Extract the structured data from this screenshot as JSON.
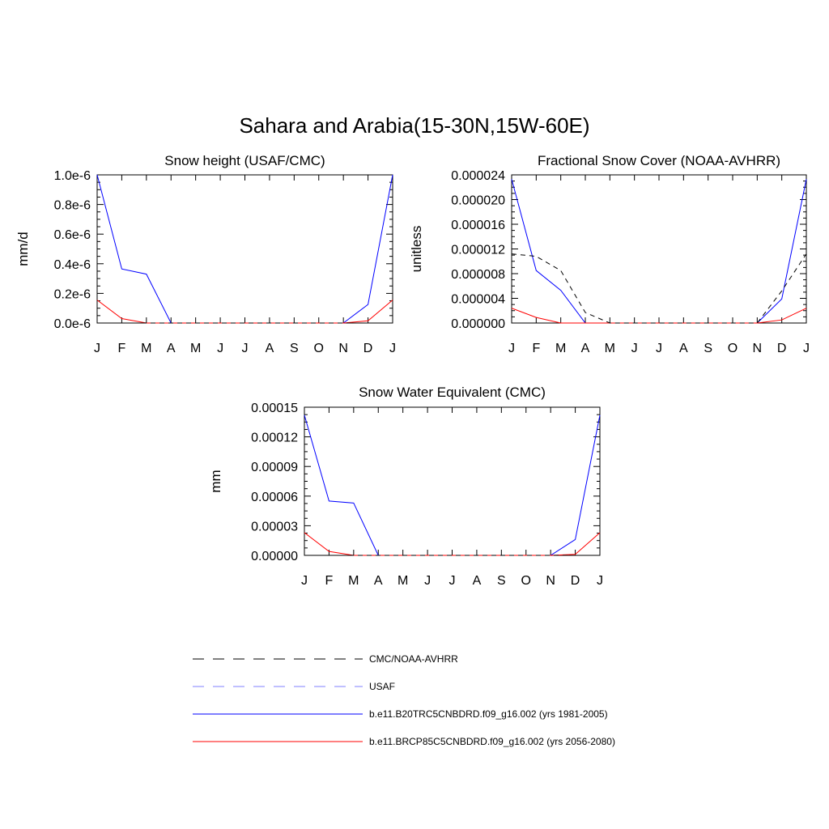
{
  "figure": {
    "title": "Sahara and Arabia(15-30N,15W-60E)"
  },
  "chart_data": [
    {
      "type": "line",
      "title": "Snow height (USAF/CMC)",
      "xlabel": "",
      "ylabel": "mm/d",
      "categories": [
        "J",
        "F",
        "M",
        "A",
        "M",
        "J",
        "J",
        "A",
        "S",
        "O",
        "N",
        "D",
        "J"
      ],
      "ylim": [
        0,
        1e-06
      ],
      "yticks": [
        0,
        2e-07,
        4e-07,
        6e-07,
        8e-07,
        1e-06
      ],
      "ytick_labels": [
        "0.0e-6",
        "0.2e-6",
        "0.4e-6",
        "0.6e-6",
        "0.8e-6",
        "1.0e-6"
      ],
      "series": [
        {
          "name": "b.e11.B20TRC5CNBDRD.f09_g16.002 (yrs 1981-2005)",
          "color": "#0000ff",
          "dash": "solid",
          "values": [
            1e-06,
            3.65e-07,
            3.3e-07,
            0,
            0,
            0,
            0,
            0,
            0,
            0,
            0,
            1.25e-07,
            1e-06
          ]
        },
        {
          "name": "b.e11.BRCP85C5CNBDRD.f09_g16.002 (yrs 2056-2080)",
          "color": "#ff0000",
          "dash": "solid",
          "values": [
            1.55e-07,
            3e-08,
            0,
            0,
            0,
            0,
            0,
            0,
            0,
            0,
            0,
            1.5e-08,
            1.55e-07
          ]
        },
        {
          "name": "CMC/NOAA-AVHRR",
          "color": "#000000",
          "dash": "dashed",
          "values": [
            0,
            0,
            0,
            0,
            0,
            0,
            0,
            0,
            0,
            0,
            0,
            0,
            0
          ]
        }
      ]
    },
    {
      "type": "line",
      "title": "Fractional Snow Cover (NOAA-AVHRR)",
      "xlabel": "",
      "ylabel": "unitless",
      "categories": [
        "J",
        "F",
        "M",
        "A",
        "M",
        "J",
        "J",
        "A",
        "S",
        "O",
        "N",
        "D",
        "J"
      ],
      "ylim": [
        0,
        2.4e-05
      ],
      "yticks": [
        0,
        4e-06,
        8e-06,
        1.2e-05,
        1.6e-05,
        2e-05,
        2.4e-05
      ],
      "ytick_labels": [
        "0.000000",
        "0.000004",
        "0.000008",
        "0.000012",
        "0.000016",
        "0.000020",
        "0.000024"
      ],
      "series": [
        {
          "name": "b.e11.B20TRC5CNBDRD.f09_g16.002 (yrs 1981-2005)",
          "color": "#0000ff",
          "dash": "solid",
          "values": [
            2.33e-05,
            8.5e-06,
            5.3e-06,
            0,
            0,
            0,
            0,
            0,
            0,
            0,
            0,
            3.9e-06,
            2.33e-05
          ]
        },
        {
          "name": "b.e11.BRCP85C5CNBDRD.f09_g16.002 (yrs 2056-2080)",
          "color": "#ff0000",
          "dash": "solid",
          "values": [
            2.4e-06,
            9e-07,
            0,
            0,
            0,
            0,
            0,
            0,
            0,
            0,
            0,
            5e-07,
            2.4e-06
          ]
        },
        {
          "name": "CMC/NOAA-AVHRR",
          "color": "#000000",
          "dash": "dashed",
          "values": [
            1.12e-05,
            1.08e-05,
            8.5e-06,
            1.7e-06,
            0,
            0,
            0,
            0,
            0,
            0,
            0,
            5.2e-06,
            1.12e-05
          ]
        }
      ]
    },
    {
      "type": "line",
      "title": "Snow Water Equivalent (CMC)",
      "xlabel": "",
      "ylabel": "mm",
      "categories": [
        "J",
        "F",
        "M",
        "A",
        "M",
        "J",
        "J",
        "A",
        "S",
        "O",
        "N",
        "D",
        "J"
      ],
      "ylim": [
        0,
        0.00015
      ],
      "yticks": [
        0,
        3e-05,
        6e-05,
        9e-05,
        0.00012,
        0.00015
      ],
      "ytick_labels": [
        "0.00000",
        "0.00003",
        "0.00006",
        "0.00009",
        "0.00012",
        "0.00015"
      ],
      "series": [
        {
          "name": "b.e11.B20TRC5CNBDRD.f09_g16.002 (yrs 1981-2005)",
          "color": "#0000ff",
          "dash": "solid",
          "values": [
            0.000142,
            5.5e-05,
            5.3e-05,
            0,
            0,
            0,
            0,
            0,
            0,
            0,
            0,
            1.6e-05,
            0.000142
          ]
        },
        {
          "name": "b.e11.BRCP85C5CNBDRD.f09_g16.002 (yrs 2056-2080)",
          "color": "#ff0000",
          "dash": "solid",
          "values": [
            2.3e-05,
            4e-06,
            0,
            0,
            0,
            0,
            0,
            0,
            0,
            0,
            0,
            1e-06,
            2.3e-05
          ]
        },
        {
          "name": "CMC/NOAA-AVHRR",
          "color": "#000000",
          "dash": "dashed",
          "values": [
            0,
            0,
            0,
            0,
            0,
            0,
            0,
            0,
            0,
            0,
            0,
            0,
            0
          ]
        }
      ]
    }
  ],
  "legend": {
    "items": [
      {
        "label": "CMC/NOAA-AVHRR",
        "color": "#000000",
        "dash": "dashed"
      },
      {
        "label": "USAF",
        "color": "#8080ff",
        "dash": "dashed"
      },
      {
        "label": "b.e11.B20TRC5CNBDRD.f09_g16.002 (yrs 1981-2005)",
        "color": "#0000ff",
        "dash": "solid"
      },
      {
        "label": "b.e11.BRCP85C5CNBDRD.f09_g16.002 (yrs 2056-2080)",
        "color": "#ff0000",
        "dash": "solid"
      }
    ]
  }
}
